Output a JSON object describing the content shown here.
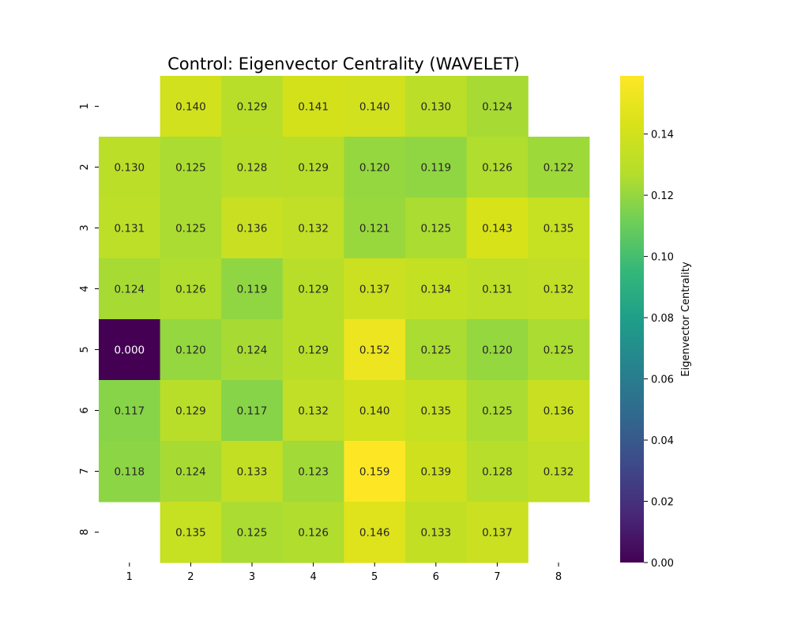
{
  "chart_data": {
    "type": "heatmap",
    "title": "Control: Eigenvector Centrality (WAVELET)",
    "xlabel": "",
    "ylabel": "",
    "x_categories": [
      "1",
      "2",
      "3",
      "4",
      "5",
      "6",
      "7",
      "8"
    ],
    "y_categories": [
      "1",
      "2",
      "3",
      "4",
      "5",
      "6",
      "7",
      "8"
    ],
    "values": [
      [
        null,
        0.14,
        0.129,
        0.141,
        0.14,
        0.13,
        0.124,
        null
      ],
      [
        0.13,
        0.125,
        0.128,
        0.129,
        0.12,
        0.119,
        0.126,
        0.122
      ],
      [
        0.131,
        0.125,
        0.136,
        0.132,
        0.121,
        0.125,
        0.143,
        0.135
      ],
      [
        0.124,
        0.126,
        0.119,
        0.129,
        0.137,
        0.134,
        0.131,
        0.132
      ],
      [
        0.0,
        0.12,
        0.124,
        0.129,
        0.152,
        0.125,
        0.12,
        0.125
      ],
      [
        0.117,
        0.129,
        0.117,
        0.132,
        0.14,
        0.135,
        0.125,
        0.136
      ],
      [
        0.118,
        0.124,
        0.133,
        0.123,
        0.159,
        0.139,
        0.128,
        0.132
      ],
      [
        null,
        0.135,
        0.125,
        0.126,
        0.146,
        0.133,
        0.137,
        null
      ]
    ],
    "value_format_decimals": 3,
    "colormap": "viridis",
    "colorbar": {
      "label": "Eigenvector Centrality",
      "range": [
        0.0,
        0.159
      ],
      "ticks": [
        0.0,
        0.02,
        0.04,
        0.06,
        0.08,
        0.1,
        0.12,
        0.14
      ],
      "tick_labels": [
        "0.00",
        "0.02",
        "0.04",
        "0.06",
        "0.08",
        "0.10",
        "0.12",
        "0.14"
      ]
    },
    "grid": false,
    "legend": "colorbar-right"
  }
}
